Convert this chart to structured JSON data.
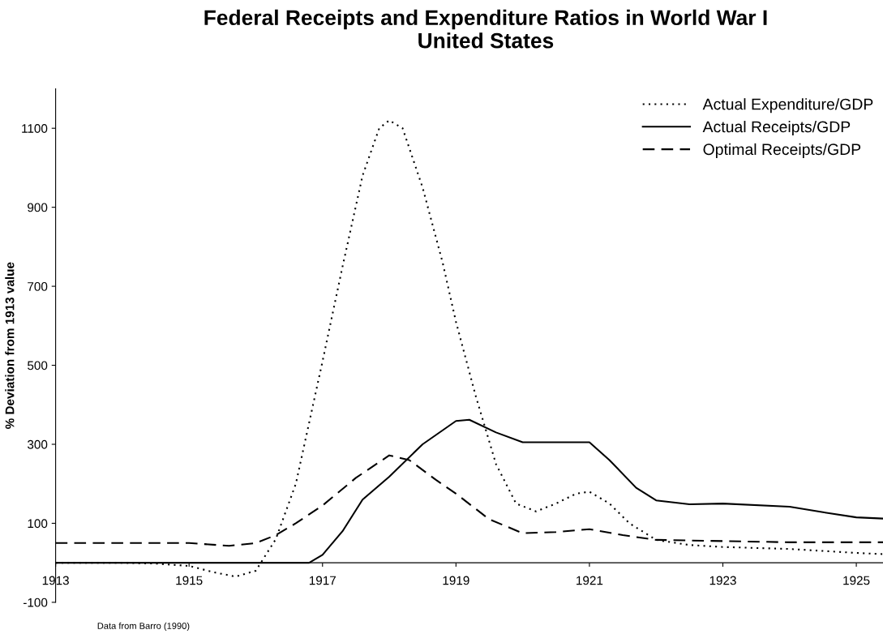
{
  "chart_data": {
    "type": "line",
    "title": "Federal Receipts and Expenditure Ratios in World War I\nUnited States",
    "ylabel": "% Deviation from 1913 value",
    "annotations": [
      "Data from Barro (1990)"
    ],
    "xlim": [
      1913,
      1925.4
    ],
    "xticks": [
      1913,
      1915,
      1917,
      1919,
      1921,
      1923,
      1925
    ],
    "ylim": [
      -100,
      1200
    ],
    "yticks": [
      -100,
      100,
      300,
      500,
      700,
      900,
      1100
    ],
    "grid": false,
    "legend": "top right",
    "marker": "none",
    "series": [
      {
        "name": "Actual Expenditure/GDP",
        "color": "#000000",
        "line_style": "dotted",
        "x": [
          1913,
          1914,
          1914.5,
          1915,
          1915.4,
          1915.7,
          1916,
          1916.3,
          1916.6,
          1917,
          1917.3,
          1917.6,
          1917.85,
          1918,
          1918.2,
          1918.5,
          1918.8,
          1919,
          1919.3,
          1919.6,
          1919.9,
          1920.2,
          1920.5,
          1920.8,
          1921,
          1921.3,
          1921.6,
          1922,
          1922.5,
          1923,
          1924,
          1925,
          1925.4
        ],
        "values": [
          0,
          0,
          -2,
          -8,
          -25,
          -35,
          -20,
          60,
          200,
          510,
          750,
          980,
          1100,
          1120,
          1100,
          950,
          760,
          610,
          420,
          250,
          150,
          130,
          150,
          175,
          180,
          150,
          100,
          58,
          45,
          40,
          35,
          25,
          22
        ]
      },
      {
        "name": "Actual Receipts/GDP",
        "color": "#000000",
        "line_style": "solid",
        "x": [
          1913,
          1915,
          1916.8,
          1917,
          1917.3,
          1917.6,
          1918,
          1918.5,
          1919,
          1919.2,
          1919.6,
          1920,
          1920.5,
          1921,
          1921.3,
          1921.7,
          1922,
          1922.5,
          1923,
          1924,
          1924.5,
          1925,
          1925.4
        ],
        "values": [
          0,
          0,
          0,
          20,
          80,
          160,
          218,
          300,
          359,
          362,
          330,
          305,
          305,
          305,
          260,
          190,
          158,
          148,
          150,
          142,
          128,
          115,
          112
        ]
      },
      {
        "name": "Optimal Receipts/GDP",
        "color": "#000000",
        "line_style": "dashed",
        "x": [
          1913,
          1915,
          1915.6,
          1916,
          1916.3,
          1916.6,
          1917,
          1917.5,
          1918,
          1918.3,
          1918.7,
          1919,
          1919.5,
          1920,
          1920.5,
          1921,
          1921.5,
          1922,
          1923,
          1924,
          1925,
          1925.4
        ],
        "values": [
          50,
          50,
          43,
          50,
          70,
          100,
          145,
          215,
          272,
          260,
          210,
          175,
          110,
          75,
          78,
          85,
          70,
          58,
          55,
          52,
          52,
          52
        ]
      }
    ]
  }
}
